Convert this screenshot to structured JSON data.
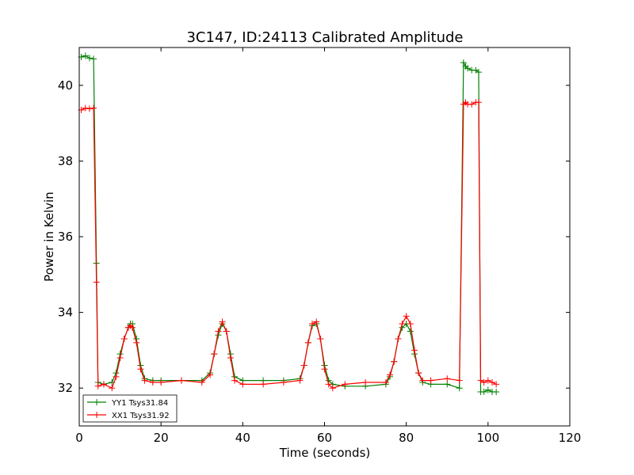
{
  "chart_data": {
    "type": "line",
    "title": "3C147, ID:24113 Calibrated Amplitude",
    "xlabel": "Time (seconds)",
    "ylabel": "Power in Kelvin",
    "xlim": [
      0,
      120
    ],
    "ylim": [
      31,
      41
    ],
    "xticks": [
      0,
      20,
      40,
      60,
      80,
      100,
      120
    ],
    "yticks": [
      32,
      34,
      36,
      38,
      40
    ],
    "grid": false,
    "legend_position": "bottom-left",
    "series": [
      {
        "name": "YY1 Tsys31.84",
        "color": "#008000",
        "marker": "+",
        "x": [
          0.5,
          1.5,
          2.5,
          3.5,
          4.2,
          4.6,
          6,
          8,
          9,
          10,
          11,
          12,
          12.5,
          13,
          14,
          15,
          16,
          18,
          20,
          25,
          30,
          32,
          33,
          34,
          35,
          36,
          37,
          38,
          40,
          45,
          50,
          54,
          55,
          56,
          57,
          58,
          59,
          60,
          61,
          62,
          65,
          70,
          75,
          76,
          77,
          78,
          79,
          80,
          81,
          82,
          83,
          84,
          86,
          90,
          93,
          94,
          94.5,
          95,
          96,
          97,
          97.7,
          98.2,
          99,
          100,
          101,
          102
        ],
        "values": [
          40.75,
          40.78,
          40.72,
          40.7,
          35.3,
          32.15,
          32.1,
          32.15,
          32.4,
          32.9,
          33.3,
          33.6,
          33.7,
          33.7,
          33.3,
          32.6,
          32.25,
          32.2,
          32.2,
          32.2,
          32.2,
          32.4,
          32.9,
          33.4,
          33.7,
          33.5,
          32.9,
          32.3,
          32.2,
          32.2,
          32.2,
          32.25,
          32.6,
          33.2,
          33.65,
          33.7,
          33.3,
          32.6,
          32.2,
          32.1,
          32.05,
          32.05,
          32.1,
          32.3,
          32.7,
          33.3,
          33.6,
          33.7,
          33.5,
          32.9,
          32.4,
          32.15,
          32.1,
          32.1,
          32.0,
          40.6,
          40.5,
          40.45,
          40.4,
          40.4,
          40.35,
          31.9,
          31.9,
          31.95,
          31.9,
          31.9
        ]
      },
      {
        "name": "XX1 Tsys31.92",
        "color": "#ff0000",
        "marker": "+",
        "x": [
          0.5,
          1.5,
          2.5,
          3.5,
          4.2,
          4.6,
          6,
          8,
          9,
          10,
          11,
          12,
          12.5,
          13,
          14,
          15,
          16,
          18,
          20,
          25,
          30,
          32,
          33,
          34,
          35,
          36,
          37,
          38,
          40,
          45,
          50,
          54,
          55,
          56,
          57,
          58,
          59,
          60,
          61,
          62,
          65,
          70,
          75,
          76,
          77,
          78,
          79,
          80,
          81,
          82,
          83,
          84,
          86,
          90,
          93,
          94,
          94.5,
          95,
          96,
          97,
          97.7,
          98.2,
          99,
          100,
          101,
          102
        ],
        "values": [
          39.35,
          39.4,
          39.38,
          39.4,
          34.8,
          32.05,
          32.1,
          32.0,
          32.3,
          32.8,
          33.3,
          33.6,
          33.65,
          33.6,
          33.2,
          32.5,
          32.2,
          32.15,
          32.15,
          32.2,
          32.15,
          32.35,
          32.9,
          33.5,
          33.75,
          33.5,
          32.8,
          32.2,
          32.1,
          32.1,
          32.15,
          32.2,
          32.6,
          33.2,
          33.7,
          33.75,
          33.3,
          32.5,
          32.1,
          32.0,
          32.1,
          32.15,
          32.15,
          32.35,
          32.7,
          33.3,
          33.7,
          33.9,
          33.7,
          33.0,
          32.4,
          32.2,
          32.2,
          32.25,
          32.2,
          39.5,
          39.55,
          39.5,
          39.5,
          39.55,
          39.55,
          32.2,
          32.15,
          32.2,
          32.15,
          32.1
        ]
      }
    ]
  }
}
